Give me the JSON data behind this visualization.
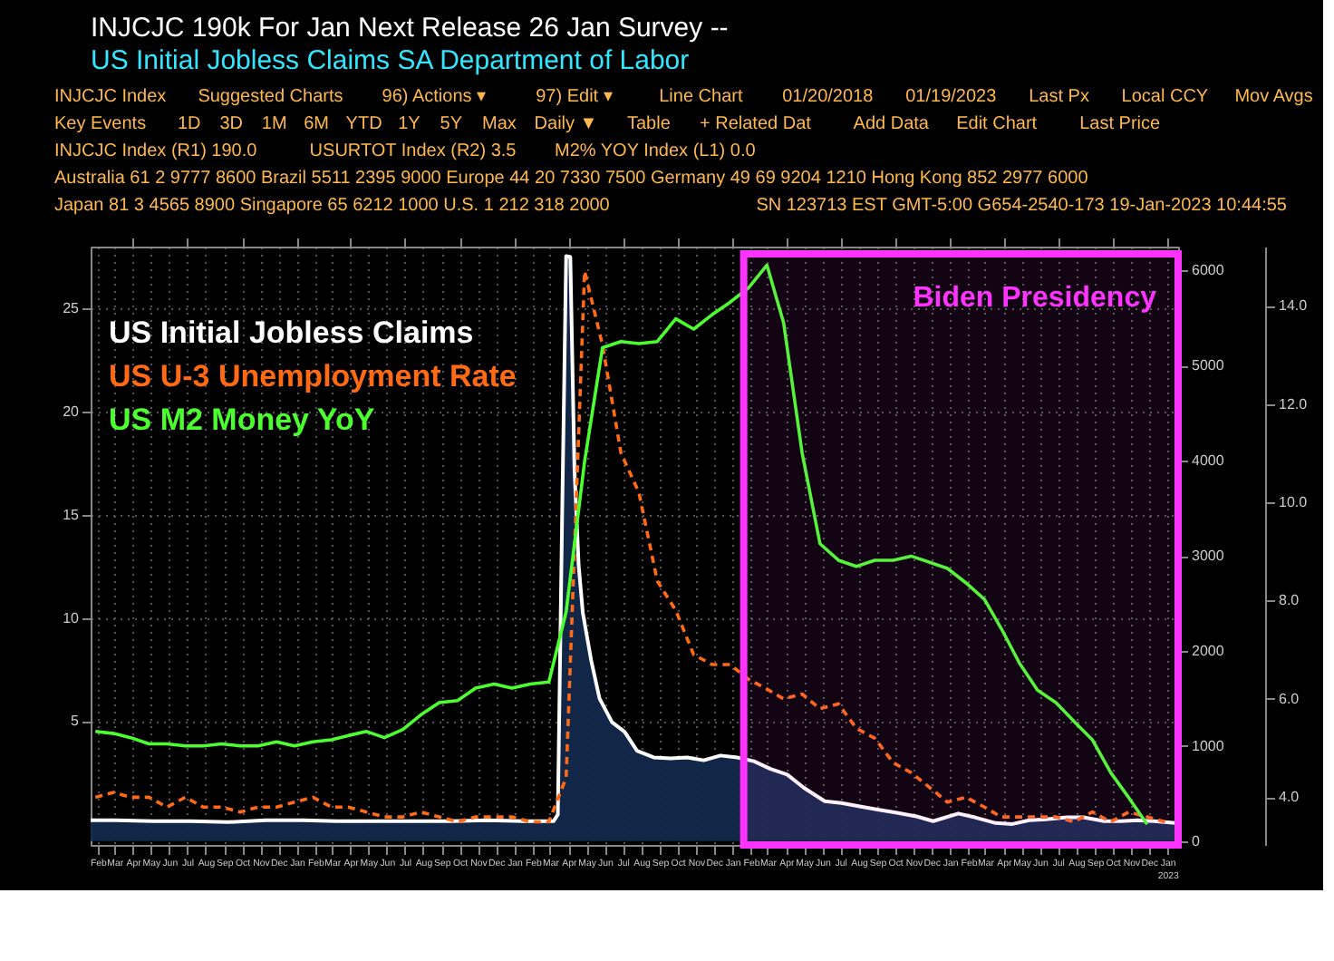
{
  "chart_data": {
    "type": "line",
    "title": "INJCJC 190k   For Jan   Next Release 26 Jan   Survey --",
    "subtitle": "US Initial Jobless Claims SA      Department of Labor",
    "annotations": [
      "INJCJC Index",
      "Suggested Charts",
      "96) Actions ▾",
      "97) Edit ▾",
      "Line Chart",
      "01/20/2018",
      "01/19/2023",
      "Last Px",
      "Local CCY",
      "Mov Avgs",
      "Key Events",
      "1D",
      "3D",
      "1M",
      "6M",
      "YTD",
      "1Y",
      "5Y",
      "Max",
      "Daily ▼",
      "Table",
      "+ Related Dat",
      "Add Data",
      "Edit Chart",
      "Last Price",
      "INJCJC Index (R1) 190.0",
      "USURTOT Index (R2) 3.5",
      "M2% YOY Index (L1) 0.0",
      "Australia 61 2 9777 8600 Brazil 5511 2395 9000 Europe 44 20 7330 7500 Germany 49 69 9204 1210 Hong Kong 852 2977 6000",
      "Japan 81 3 4565 8900   Singapore 65 6212 1000   U.S. 1 212 318 2000",
      "SN 123713 EST GMT-5:00 G654-2540-173 19-Jan-2023 10:44:55"
    ],
    "xlim": [
      "2018-01-20",
      "2023-01-19"
    ],
    "xticks": [
      {
        "value": "2018-02-01",
        "label": "Feb"
      },
      {
        "value": "2018-03-01",
        "label": "Mar"
      },
      {
        "value": "2018-04-01",
        "label": "Apr"
      },
      {
        "value": "2018-05-01",
        "label": "May"
      },
      {
        "value": "2018-06-01",
        "label": "Jun"
      },
      {
        "value": "2018-07-01",
        "label": "Jul"
      },
      {
        "value": "2018-08-01",
        "label": "Aug"
      },
      {
        "value": "2018-09-01",
        "label": "Sep"
      },
      {
        "value": "2018-10-01",
        "label": "Oct"
      },
      {
        "value": "2018-11-01",
        "label": "Nov"
      },
      {
        "value": "2018-12-01",
        "label": "Dec"
      },
      {
        "value": "2019-01-01",
        "label": "Jan"
      },
      {
        "value": "2019-02-01",
        "label": "Feb"
      },
      {
        "value": "2019-03-01",
        "label": "Mar"
      },
      {
        "value": "2019-04-01",
        "label": "Apr"
      },
      {
        "value": "2019-05-01",
        "label": "May"
      },
      {
        "value": "2019-06-01",
        "label": "Jun"
      },
      {
        "value": "2019-07-01",
        "label": "Jul"
      },
      {
        "value": "2019-08-01",
        "label": "Aug"
      },
      {
        "value": "2019-09-01",
        "label": "Sep"
      },
      {
        "value": "2019-10-01",
        "label": "Oct"
      },
      {
        "value": "2019-11-01",
        "label": "Nov"
      },
      {
        "value": "2019-12-01",
        "label": "Dec"
      },
      {
        "value": "2020-01-01",
        "label": "Jan"
      },
      {
        "value": "2020-02-01",
        "label": "Feb"
      },
      {
        "value": "2020-03-01",
        "label": "Mar"
      },
      {
        "value": "2020-04-01",
        "label": "Apr"
      },
      {
        "value": "2020-05-01",
        "label": "May"
      },
      {
        "value": "2020-06-01",
        "label": "Jun"
      },
      {
        "value": "2020-07-01",
        "label": "Jul"
      },
      {
        "value": "2020-08-01",
        "label": "Aug"
      },
      {
        "value": "2020-09-01",
        "label": "Sep"
      },
      {
        "value": "2020-10-01",
        "label": "Oct"
      },
      {
        "value": "2020-11-01",
        "label": "Nov"
      },
      {
        "value": "2020-12-01",
        "label": "Dec"
      },
      {
        "value": "2021-01-01",
        "label": "Jan"
      },
      {
        "value": "2021-02-01",
        "label": "Feb"
      },
      {
        "value": "2021-03-01",
        "label": "Mar"
      },
      {
        "value": "2021-04-01",
        "label": "Apr"
      },
      {
        "value": "2021-05-01",
        "label": "May"
      },
      {
        "value": "2021-06-01",
        "label": "Jun"
      },
      {
        "value": "2021-07-01",
        "label": "Jul"
      },
      {
        "value": "2021-08-01",
        "label": "Aug"
      },
      {
        "value": "2021-09-01",
        "label": "Sep"
      },
      {
        "value": "2021-10-01",
        "label": "Oct"
      },
      {
        "value": "2021-11-01",
        "label": "Nov"
      },
      {
        "value": "2021-12-01",
        "label": "Dec"
      },
      {
        "value": "2022-01-01",
        "label": "Jan"
      },
      {
        "value": "2022-02-01",
        "label": "Feb"
      },
      {
        "value": "2022-03-01",
        "label": "Mar"
      },
      {
        "value": "2022-04-01",
        "label": "Apr"
      },
      {
        "value": "2022-05-01",
        "label": "May"
      },
      {
        "value": "2022-06-01",
        "label": "Jun"
      },
      {
        "value": "2022-07-01",
        "label": "Jul"
      },
      {
        "value": "2022-08-01",
        "label": "Aug"
      },
      {
        "value": "2022-09-01",
        "label": "Sep"
      },
      {
        "value": "2022-10-01",
        "label": "Oct"
      },
      {
        "value": "2022-11-01",
        "label": "Nov"
      },
      {
        "value": "2022-12-01",
        "label": "Dec"
      },
      {
        "value": "2023-01-01",
        "label": "Jan 2023"
      }
    ],
    "ylim": [
      -1,
      28
    ],
    "yticks": [
      5,
      10,
      15,
      20,
      25
    ],
    "y2lim": [
      -40,
      6250
    ],
    "y2ticks": [
      0,
      1000,
      2000,
      3000,
      4000,
      5000,
      6000
    ],
    "y3lim": [
      3.03,
      15.2
    ],
    "y3ticks": [
      {
        "value": 4,
        "label": "4.0"
      },
      {
        "value": 6,
        "label": "6.0"
      },
      {
        "value": 8,
        "label": "8.0"
      },
      {
        "value": 10,
        "label": "10.0"
      },
      {
        "value": 12,
        "label": "12.0"
      },
      {
        "value": 14,
        "label": "14.0"
      }
    ],
    "grid": true,
    "legend": "top left",
    "bands": [
      {
        "axis": "x",
        "from": "2021-01-20",
        "to": "2023-01-19",
        "label": "Biden Presidency",
        "color": "#ff33ff"
      }
    ],
    "series": [
      {
        "name": "US Initial Jobless Claims",
        "type": "area",
        "axis": "y2",
        "color": "#ffffff",
        "line_style": "solid",
        "x": [
          "2018-01-20",
          "2018-03-03",
          "2018-05-05",
          "2018-07-07",
          "2018-09-08",
          "2018-11-10",
          "2019-01-12",
          "2019-03-09",
          "2019-05-11",
          "2019-07-13",
          "2019-09-14",
          "2019-11-16",
          "2020-01-18",
          "2020-03-07",
          "2020-03-14",
          "2020-03-21",
          "2020-03-28",
          "2020-04-04",
          "2020-04-11",
          "2020-04-18",
          "2020-04-25",
          "2020-05-09",
          "2020-05-23",
          "2020-06-13",
          "2020-07-04",
          "2020-07-25",
          "2020-08-22",
          "2020-09-19",
          "2020-10-17",
          "2020-11-14",
          "2020-12-12",
          "2021-01-09",
          "2021-02-06",
          "2021-03-06",
          "2021-04-03",
          "2021-05-01",
          "2021-06-05",
          "2021-07-03",
          "2021-08-07",
          "2021-09-04",
          "2021-10-02",
          "2021-11-06",
          "2021-12-04",
          "2022-01-15",
          "2022-02-12",
          "2022-03-19",
          "2022-04-16",
          "2022-05-14",
          "2022-06-11",
          "2022-07-16",
          "2022-08-13",
          "2022-09-17",
          "2022-10-15",
          "2022-11-12",
          "2022-12-10",
          "2023-01-14"
        ],
        "values": [
          220,
          220,
          210,
          210,
          200,
          220,
          220,
          210,
          210,
          210,
          210,
          220,
          210,
          210,
          280,
          3300,
          6150,
          6140,
          3900,
          2900,
          2400,
          1900,
          1500,
          1250,
          1150,
          950,
          880,
          870,
          880,
          850,
          900,
          880,
          840,
          760,
          700,
          560,
          420,
          400,
          360,
          330,
          300,
          260,
          210,
          290,
          250,
          190,
          180,
          220,
          230,
          250,
          250,
          210,
          210,
          220,
          210,
          190
        ]
      },
      {
        "name": "US U-3 Unemployment Rate",
        "axis": "y3",
        "color": "#ff6a13",
        "line_style": "dashed",
        "x": [
          "2018-01-28",
          "2018-02-28",
          "2018-03-28",
          "2018-04-28",
          "2018-05-28",
          "2018-06-28",
          "2018-07-28",
          "2018-08-28",
          "2018-09-28",
          "2018-10-28",
          "2018-11-28",
          "2018-12-28",
          "2019-01-28",
          "2019-02-28",
          "2019-03-28",
          "2019-04-28",
          "2019-05-28",
          "2019-06-28",
          "2019-07-28",
          "2019-08-28",
          "2019-09-28",
          "2019-10-28",
          "2019-11-28",
          "2019-12-28",
          "2020-01-28",
          "2020-02-28",
          "2020-03-28",
          "2020-04-28",
          "2020-05-28",
          "2020-06-28",
          "2020-07-28",
          "2020-08-28",
          "2020-09-28",
          "2020-10-28",
          "2020-11-28",
          "2020-12-28",
          "2021-01-28",
          "2021-02-28",
          "2021-03-28",
          "2021-04-28",
          "2021-05-28",
          "2021-06-28",
          "2021-07-28",
          "2021-08-28",
          "2021-09-28",
          "2021-10-28",
          "2021-11-28",
          "2021-12-28",
          "2022-01-28",
          "2022-02-28",
          "2022-03-28",
          "2022-04-28",
          "2022-05-28",
          "2022-06-28",
          "2022-07-28",
          "2022-08-28",
          "2022-09-28",
          "2022-10-28",
          "2022-11-28",
          "2022-12-28"
        ],
        "values": [
          4.0,
          4.1,
          4.0,
          4.0,
          3.8,
          4.0,
          3.8,
          3.8,
          3.7,
          3.8,
          3.8,
          3.9,
          4.0,
          3.8,
          3.8,
          3.7,
          3.6,
          3.6,
          3.7,
          3.6,
          3.5,
          3.6,
          3.6,
          3.6,
          3.5,
          3.5,
          4.4,
          14.7,
          13.2,
          11.0,
          10.2,
          8.4,
          7.8,
          6.9,
          6.7,
          6.7,
          6.4,
          6.2,
          6.0,
          6.1,
          5.8,
          5.9,
          5.4,
          5.2,
          4.7,
          4.5,
          4.2,
          3.9,
          4.0,
          3.8,
          3.6,
          3.6,
          3.6,
          3.6,
          3.5,
          3.7,
          3.5,
          3.7,
          3.6,
          3.5
        ]
      },
      {
        "name": "US M2 Money YoY",
        "axis": "y",
        "color": "#4cff2e",
        "line_style": "solid",
        "x": [
          "2018-01-28",
          "2018-02-28",
          "2018-03-28",
          "2018-04-28",
          "2018-05-28",
          "2018-06-28",
          "2018-07-28",
          "2018-08-28",
          "2018-09-28",
          "2018-10-28",
          "2018-11-28",
          "2018-12-28",
          "2019-01-28",
          "2019-02-28",
          "2019-03-28",
          "2019-04-28",
          "2019-05-28",
          "2019-06-28",
          "2019-07-28",
          "2019-08-28",
          "2019-09-28",
          "2019-10-28",
          "2019-11-28",
          "2019-12-28",
          "2020-01-28",
          "2020-02-28",
          "2020-03-28",
          "2020-04-28",
          "2020-05-28",
          "2020-06-28",
          "2020-07-28",
          "2020-08-28",
          "2020-09-28",
          "2020-10-28",
          "2020-11-28",
          "2020-12-28",
          "2021-01-28",
          "2021-02-28",
          "2021-03-28",
          "2021-04-28",
          "2021-05-28",
          "2021-06-28",
          "2021-07-28",
          "2021-08-28",
          "2021-09-28",
          "2021-10-28",
          "2021-11-28",
          "2021-12-28",
          "2022-01-28",
          "2022-02-28",
          "2022-03-28",
          "2022-04-28",
          "2022-05-28",
          "2022-06-28",
          "2022-07-28",
          "2022-08-28",
          "2022-09-28",
          "2022-10-28",
          "2022-11-28"
        ],
        "values": [
          4.5,
          4.4,
          4.2,
          3.9,
          3.9,
          3.8,
          3.8,
          3.9,
          3.8,
          3.8,
          4.0,
          3.8,
          4.0,
          4.1,
          4.3,
          4.5,
          4.2,
          4.6,
          5.3,
          5.9,
          6.0,
          6.6,
          6.8,
          6.6,
          6.8,
          6.9,
          10.3,
          17.6,
          23.1,
          23.4,
          23.3,
          23.4,
          24.5,
          24.0,
          24.7,
          25.3,
          26.0,
          27.1,
          24.3,
          18.0,
          13.6,
          12.8,
          12.5,
          12.8,
          12.8,
          13.0,
          12.7,
          12.4,
          11.7,
          10.9,
          9.5,
          7.8,
          6.5,
          5.9,
          5.0,
          4.1,
          2.5,
          1.3,
          0.0
        ]
      }
    ]
  }
}
